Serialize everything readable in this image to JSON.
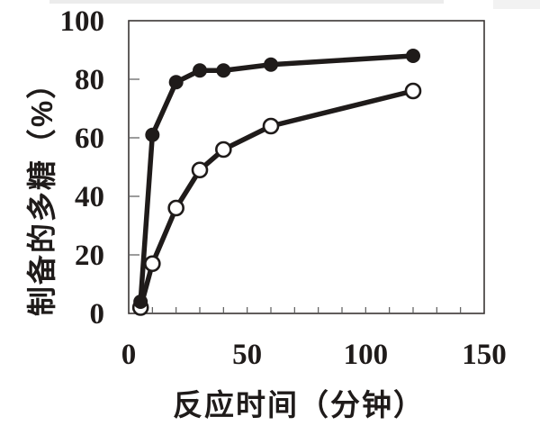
{
  "figure": {
    "background": "#ffffff",
    "ink_color": "#1f1b1a",
    "frame_color": "#3a3534",
    "tick_color": "#5a5a5a",
    "scan_artifact_color": "#ececec"
  },
  "chart_data": {
    "type": "line",
    "title": "",
    "xlabel": "反应时间（分钟）",
    "ylabel": "制备的多糖（%）",
    "xlim": [
      0,
      150
    ],
    "ylim": [
      0,
      100
    ],
    "x_major_ticks": [
      0,
      50,
      100,
      150
    ],
    "x_minor_tick_step": 10,
    "y_major_ticks": [
      0,
      20,
      40,
      60,
      80,
      100
    ],
    "grid": false,
    "legend_position": "none",
    "series": [
      {
        "name": "open-circle-series",
        "marker": "open-circle",
        "color": "#1f1b1a",
        "x": [
          5,
          10,
          20,
          30,
          40,
          60,
          120
        ],
        "y": [
          2,
          17,
          36,
          49,
          56,
          64,
          76
        ]
      },
      {
        "name": "filled-circle-series",
        "marker": "filled-circle",
        "color": "#1f1b1a",
        "x": [
          5,
          10,
          20,
          30,
          40,
          60,
          120
        ],
        "y": [
          4,
          61,
          79,
          83,
          83,
          85,
          88
        ]
      }
    ]
  }
}
